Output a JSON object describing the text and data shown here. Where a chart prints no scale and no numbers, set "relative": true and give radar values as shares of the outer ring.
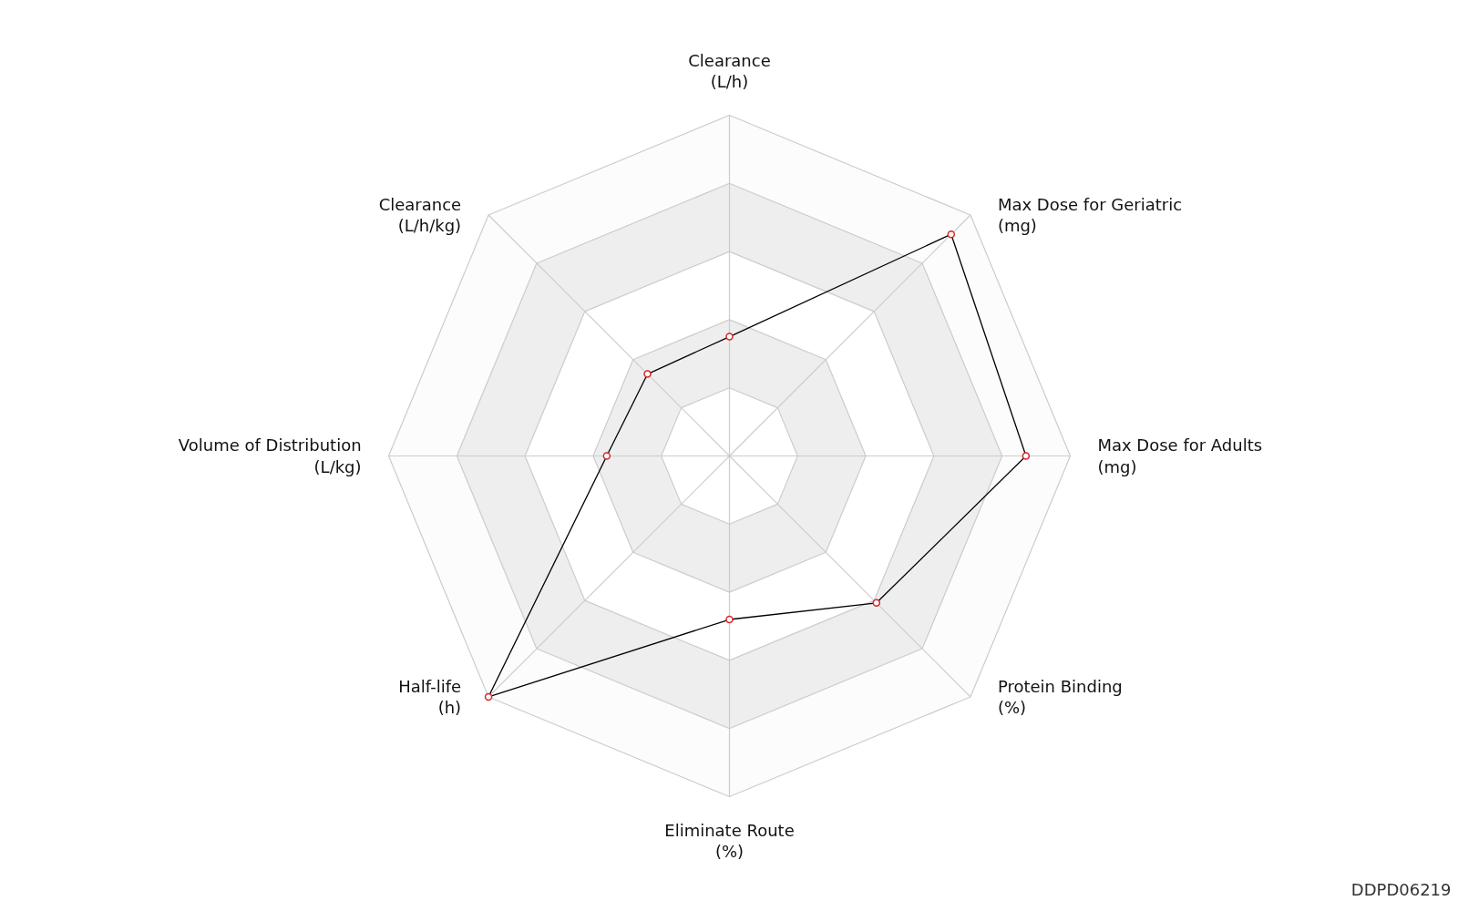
{
  "chart_data": {
    "type": "radar",
    "relative": true,
    "grid": true,
    "marker": "circle",
    "categories": [
      "Clearance\n(L/h)",
      "Max Dose for Geriatric\n(mg)",
      "Max Dose for Adults\n(mg)",
      "Protein Binding\n(%)",
      "Eliminate Route\n(%)",
      "Half-life\n(h)",
      "Volume of Distribution\n(L/kg)",
      "Clearance\n(L/h/kg)"
    ],
    "series": [
      {
        "color": "#000000",
        "values": [
          0.35,
          0.92,
          0.87,
          0.61,
          0.48,
          1.0,
          0.36,
          0.34
        ]
      }
    ],
    "annotations": [
      "DDPD06219"
    ]
  }
}
